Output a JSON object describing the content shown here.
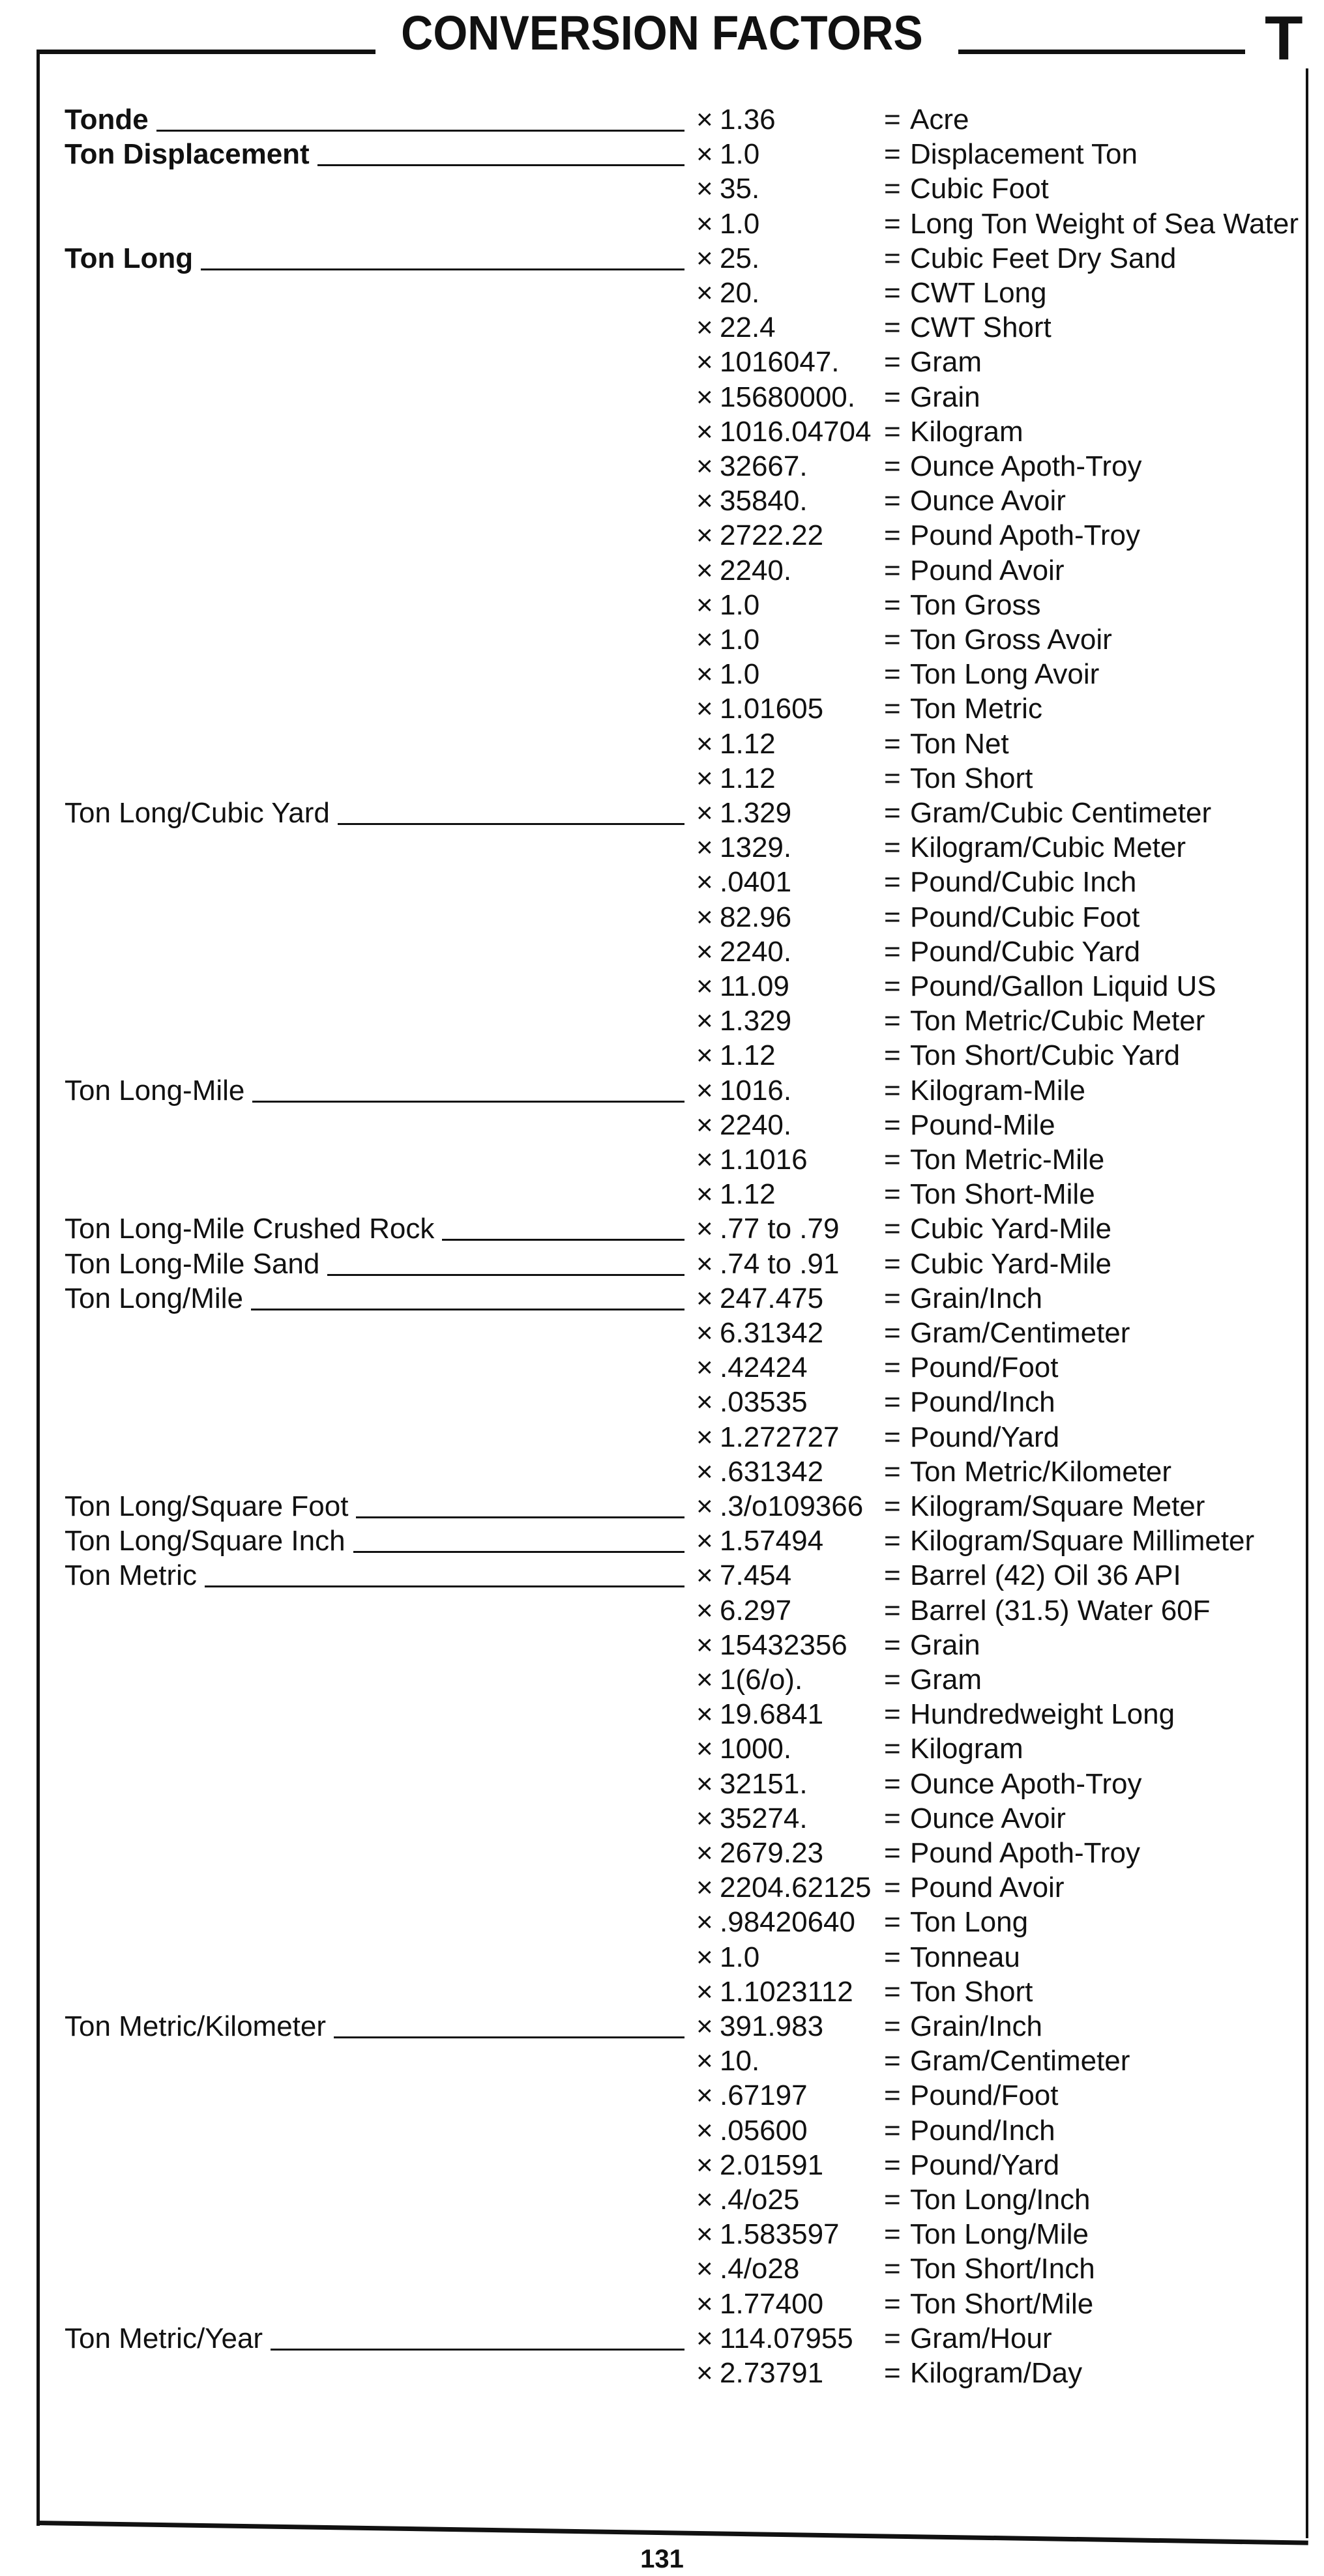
{
  "header": {
    "title": "CONVERSION FACTORS",
    "section_letter": "T"
  },
  "footer": {
    "page_number": "131"
  },
  "symbols": {
    "multiply": "×",
    "equals": "="
  },
  "groups": [
    {
      "label": "Tonde",
      "bold": true,
      "rows": [
        {
          "factor": "1.36",
          "unit": "Acre"
        }
      ]
    },
    {
      "label": "Ton Displacement",
      "bold": true,
      "rows": [
        {
          "factor": "1.0",
          "unit": "Displacement Ton"
        },
        {
          "factor": "35.",
          "unit": "Cubic Foot"
        },
        {
          "factor": "1.0",
          "unit": "Long Ton Weight of Sea Water"
        }
      ]
    },
    {
      "label": "Ton Long",
      "bold": true,
      "rows": [
        {
          "factor": "25.",
          "unit": "Cubic Feet Dry Sand"
        },
        {
          "factor": "20.",
          "unit": "CWT Long"
        },
        {
          "factor": "22.4",
          "unit": "CWT Short"
        },
        {
          "factor": "1016047.",
          "unit": "Gram"
        },
        {
          "factor": "15680000.",
          "unit": "Grain"
        },
        {
          "factor": "1016.04704",
          "unit": "Kilogram"
        },
        {
          "factor": "32667.",
          "unit": "Ounce Apoth-Troy"
        },
        {
          "factor": "35840.",
          "unit": "Ounce Avoir"
        },
        {
          "factor": "2722.22",
          "unit": "Pound Apoth-Troy"
        },
        {
          "factor": "2240.",
          "unit": "Pound Avoir"
        },
        {
          "factor": "1.0",
          "unit": "Ton Gross"
        },
        {
          "factor": "1.0",
          "unit": "Ton Gross Avoir"
        },
        {
          "factor": "1.0",
          "unit": "Ton Long Avoir"
        },
        {
          "factor": "1.01605",
          "unit": "Ton Metric"
        },
        {
          "factor": "1.12",
          "unit": "Ton Net"
        },
        {
          "factor": "1.12",
          "unit": "Ton Short"
        }
      ]
    },
    {
      "label": "Ton Long/Cubic Yard",
      "bold": false,
      "rows": [
        {
          "factor": "1.329",
          "unit": "Gram/Cubic Centimeter"
        },
        {
          "factor": "1329.",
          "unit": "Kilogram/Cubic Meter"
        },
        {
          "factor": ".0401",
          "unit": "Pound/Cubic Inch"
        },
        {
          "factor": "82.96",
          "unit": "Pound/Cubic Foot"
        },
        {
          "factor": "2240.",
          "unit": "Pound/Cubic Yard"
        },
        {
          "factor": "11.09",
          "unit": "Pound/Gallon Liquid US"
        },
        {
          "factor": "1.329",
          "unit": "Ton Metric/Cubic Meter"
        },
        {
          "factor": "1.12",
          "unit": "Ton Short/Cubic Yard"
        }
      ]
    },
    {
      "label": "Ton Long-Mile",
      "bold": false,
      "rows": [
        {
          "factor": "1016.",
          "unit": "Kilogram-Mile"
        },
        {
          "factor": "2240.",
          "unit": "Pound-Mile"
        },
        {
          "factor": "1.1016",
          "unit": "Ton Metric-Mile"
        },
        {
          "factor": "1.12",
          "unit": "Ton Short-Mile"
        }
      ]
    },
    {
      "label": "Ton Long-Mile Crushed Rock",
      "bold": false,
      "rows": [
        {
          "factor": ".77 to .79",
          "unit": "Cubic Yard-Mile"
        }
      ]
    },
    {
      "label": "Ton Long-Mile Sand",
      "bold": false,
      "rows": [
        {
          "factor": ".74 to .91",
          "unit": "Cubic Yard-Mile"
        }
      ]
    },
    {
      "label": "Ton Long/Mile",
      "bold": false,
      "rows": [
        {
          "factor": "247.475",
          "unit": "Grain/Inch"
        },
        {
          "factor": "6.31342",
          "unit": "Gram/Centimeter"
        },
        {
          "factor": ".42424",
          "unit": "Pound/Foot"
        },
        {
          "factor": ".03535",
          "unit": "Pound/Inch"
        },
        {
          "factor": "1.272727",
          "unit": "Pound/Yard"
        },
        {
          "factor": ".631342",
          "unit": "Ton Metric/Kilometer"
        }
      ]
    },
    {
      "label": "Ton Long/Square Foot",
      "bold": false,
      "rows": [
        {
          "factor": ".3/o109366",
          "unit": "Kilogram/Square Meter"
        }
      ]
    },
    {
      "label": "Ton Long/Square Inch",
      "bold": false,
      "rows": [
        {
          "factor": "1.57494",
          "unit": "Kilogram/Square Millimeter"
        }
      ]
    },
    {
      "label": "Ton Metric",
      "bold": false,
      "rows": [
        {
          "factor": "7.454",
          "unit": "Barrel (42) Oil 36 API"
        },
        {
          "factor": "6.297",
          "unit": "Barrel (31.5) Water 60F"
        },
        {
          "factor": "15432356",
          "unit": "Grain"
        },
        {
          "factor": "1(6/o).",
          "unit": "Gram"
        },
        {
          "factor": "19.6841",
          "unit": "Hundredweight Long"
        },
        {
          "factor": "1000.",
          "unit": "Kilogram"
        },
        {
          "factor": "32151.",
          "unit": "Ounce Apoth-Troy"
        },
        {
          "factor": "35274.",
          "unit": "Ounce Avoir"
        },
        {
          "factor": "2679.23",
          "unit": "Pound Apoth-Troy"
        },
        {
          "factor": "2204.62125",
          "unit": "Pound Avoir"
        },
        {
          "factor": ".98420640",
          "unit": "Ton Long"
        },
        {
          "factor": "1.0",
          "unit": "Tonneau"
        },
        {
          "factor": "1.1023112",
          "unit": "Ton Short"
        }
      ]
    },
    {
      "label": "Ton Metric/Kilometer",
      "bold": false,
      "rows": [
        {
          "factor": "391.983",
          "unit": "Grain/Inch"
        },
        {
          "factor": "10.",
          "unit": "Gram/Centimeter"
        },
        {
          "factor": ".67197",
          "unit": "Pound/Foot"
        },
        {
          "factor": ".05600",
          "unit": "Pound/Inch"
        },
        {
          "factor": "2.01591",
          "unit": "Pound/Yard"
        },
        {
          "factor": ".4/o25",
          "unit": "Ton Long/Inch"
        },
        {
          "factor": "1.583597",
          "unit": "Ton Long/Mile"
        },
        {
          "factor": ".4/o28",
          "unit": "Ton Short/Inch"
        },
        {
          "factor": "1.77400",
          "unit": "Ton Short/Mile"
        }
      ]
    },
    {
      "label": "Ton Metric/Year",
      "bold": false,
      "rows": [
        {
          "factor": "114.07955",
          "unit": "Gram/Hour"
        },
        {
          "factor": "2.73791",
          "unit": "Kilogram/Day"
        }
      ]
    }
  ]
}
